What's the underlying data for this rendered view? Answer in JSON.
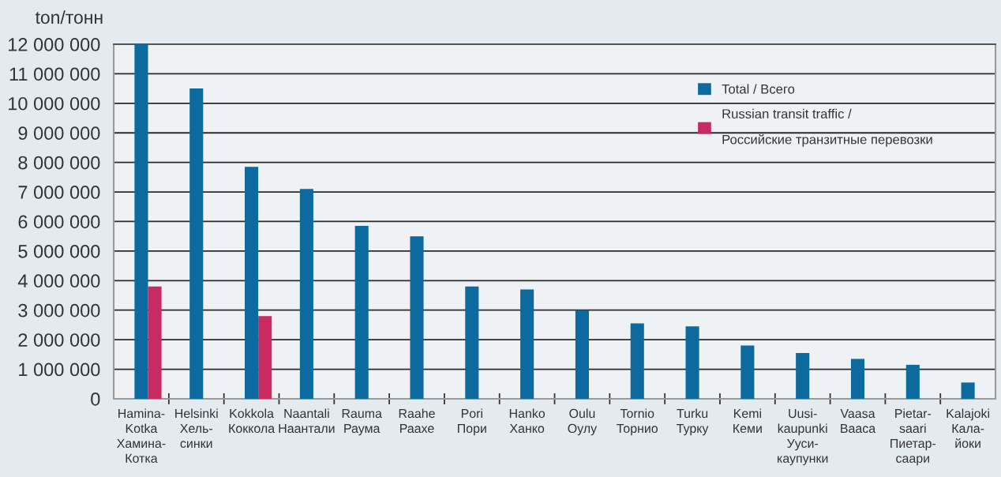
{
  "chart_data": {
    "type": "bar",
    "ylabel": "ton/тонн",
    "categories": [
      "Hamina-\nKotka\nХамина-\nКотка",
      "Helsinki\nХель-\nсинки",
      "Kokkola\nКоккола",
      "Naantali\nНаантали",
      "Rauma\nРаума",
      "Raahe\nРаахе",
      "Pori\nПори",
      "Hanko\nХанко",
      "Oulu\nОулу",
      "Tornio\nТорнио",
      "Turku\nТурку",
      "Kemi\nКеми",
      "Uusi-\nkaupunki\nУуси-\nкаупунки",
      "Vaasa\nВааса",
      "Pietar-\nsaari\nПиетар-\nсаари",
      "Kalajoki\nКала-\nйоки"
    ],
    "series": [
      {
        "name": "Total / Всего",
        "color": "#0d6a9e",
        "values": [
          12000000,
          10500000,
          7850000,
          7100000,
          5850000,
          5500000,
          3800000,
          3700000,
          3000000,
          2550000,
          2450000,
          1800000,
          1550000,
          1350000,
          1150000,
          550000
        ]
      },
      {
        "name": "Russian transit traffic /\nРоссийские транзитные перевозки",
        "color": "#c82a62",
        "values": [
          3800000,
          null,
          2800000,
          null,
          null,
          null,
          null,
          null,
          null,
          null,
          null,
          null,
          null,
          null,
          null,
          null
        ]
      }
    ],
    "ylim": [
      0,
      12000000
    ],
    "yticks": [
      {
        "value": 0,
        "label": "0"
      },
      {
        "value": 1000000,
        "label": "1 000 000"
      },
      {
        "value": 2000000,
        "label": "2 000 000"
      },
      {
        "value": 3000000,
        "label": "3 000 000"
      },
      {
        "value": 4000000,
        "label": "4 000 000"
      },
      {
        "value": 5000000,
        "label": "5 000 000"
      },
      {
        "value": 6000000,
        "label": "6 000 000"
      },
      {
        "value": 7000000,
        "label": "7 000 000"
      },
      {
        "value": 8000000,
        "label": "8 000 000"
      },
      {
        "value": 9000000,
        "label": "9 000 000"
      },
      {
        "value": 10000000,
        "label": "10 000 000"
      },
      {
        "value": 11000000,
        "label": "11 000 000"
      },
      {
        "value": 12000000,
        "label": "12 000 000"
      }
    ],
    "grid": "y",
    "legend": "top right"
  }
}
